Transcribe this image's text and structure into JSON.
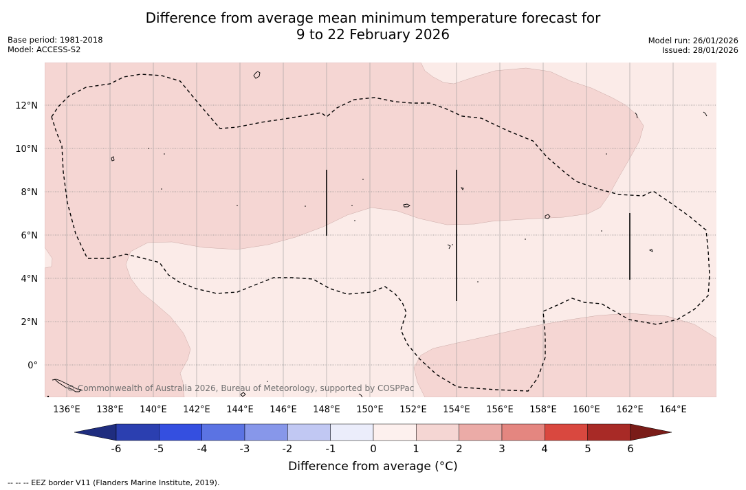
{
  "header": {
    "title_line1": "Difference from average mean minimum temperature forecast for",
    "title_line2": "9 to 22 February 2026",
    "base_period": "Base period: 1981-2018",
    "model": "Model: ACCESS-S2",
    "model_run": "Model run: 26/01/2026",
    "issued": "Issued: 28/01/2026"
  },
  "map": {
    "lon_range": [
      135,
      166
    ],
    "lat_range": [
      -1.5,
      14
    ],
    "lon_ticks": [
      "136°E",
      "138°E",
      "140°E",
      "142°E",
      "144°E",
      "146°E",
      "148°E",
      "150°E",
      "152°E",
      "154°E",
      "156°E",
      "158°E",
      "160°E",
      "162°E",
      "164°E"
    ],
    "lat_ticks": [
      "12°N",
      "10°N",
      "8°N",
      "6°N",
      "4°N",
      "2°N",
      "0°"
    ],
    "copyright": "© Commonwealth of Australia 2026, Bureau of Meteorology, supported by COSPPac",
    "colors": {
      "anomaly_0_1": "#fbebe8",
      "anomaly_1_2": "#f5d6d3",
      "eez_line": "#000000"
    }
  },
  "colorbar": {
    "title": "Difference from average (°C)",
    "ticks": [
      "-6",
      "-5",
      "-4",
      "-3",
      "-2",
      "-1",
      "0",
      "1",
      "2",
      "3",
      "4",
      "5",
      "6"
    ],
    "colors": [
      "#2b3fb0",
      "#344fe0",
      "#5b73e3",
      "#8797ea",
      "#c1c8f3",
      "#ebedfb",
      "#fdf0ee",
      "#f5d6d3",
      "#ebaba7",
      "#e48680",
      "#d9483f",
      "#a82a26"
    ],
    "under_color": "#1f2d7f",
    "over_color": "#7a1c18"
  },
  "footnote": "--  --  -- EEZ border V11 (Flanders Marine Institute, 2019)."
}
